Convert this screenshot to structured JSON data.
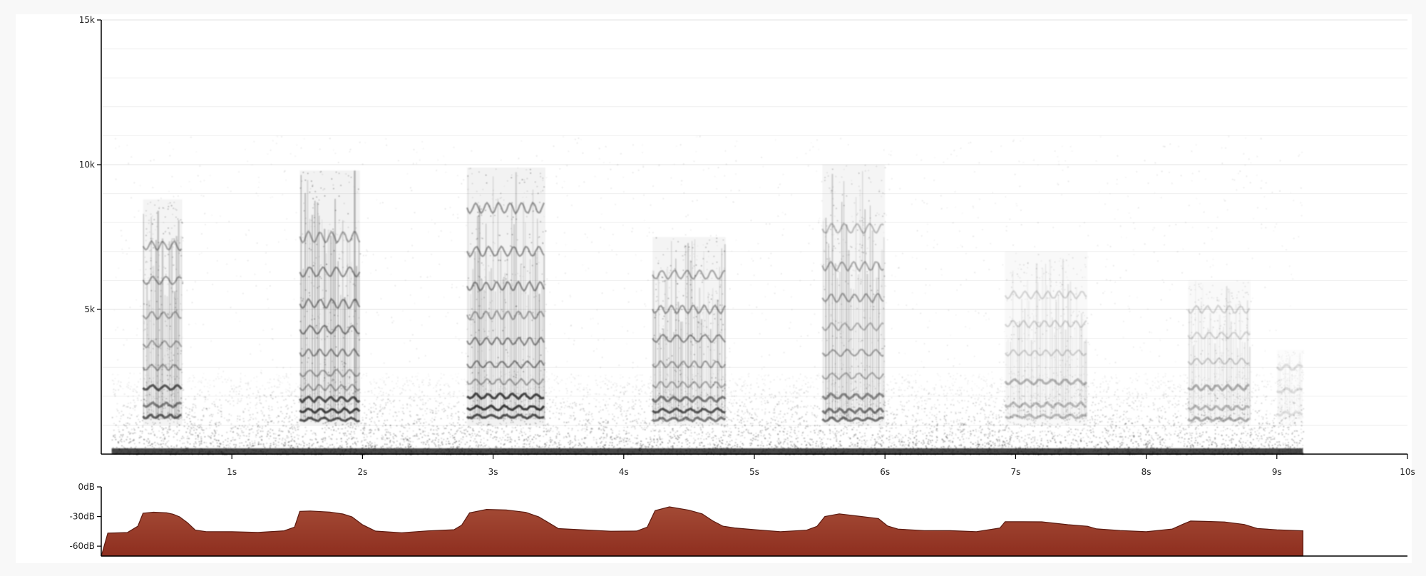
{
  "chart_data": [
    {
      "type": "heatmap",
      "subtype": "spectrogram",
      "colormap": "white-to-black",
      "x_axis": {
        "range": [
          0,
          10
        ],
        "unit": "s",
        "ticks": [
          1,
          2,
          3,
          4,
          5,
          6,
          7,
          8,
          9,
          10
        ],
        "tick_labels": [
          "1s",
          "2s",
          "3s",
          "4s",
          "5s",
          "6s",
          "7s",
          "8s",
          "9s",
          "10s"
        ]
      },
      "y_axis": {
        "range": [
          0,
          15000
        ],
        "unit": "Hz",
        "ticks": [
          5000,
          10000,
          15000
        ],
        "tick_labels": [
          "5k",
          "10k",
          "15k"
        ],
        "minor_step": 1000
      },
      "signal_end_s": 9.2,
      "noise_floor_hz": 2000,
      "strophes": [
        {
          "start_s": 0.32,
          "end_s": 0.62,
          "max_hz": 8800,
          "harmonic_hz": [
            1300,
            1700,
            2300,
            3000,
            3800,
            4800,
            6000,
            7200
          ],
          "intensity": 0.85
        },
        {
          "start_s": 1.52,
          "end_s": 1.98,
          "max_hz": 9800,
          "harmonic_hz": [
            1200,
            1500,
            1900,
            2300,
            2800,
            3500,
            4300,
            5200,
            6300,
            7500
          ],
          "intensity": 1.0
        },
        {
          "start_s": 2.8,
          "end_s": 3.4,
          "max_hz": 9900,
          "harmonic_hz": [
            1300,
            1600,
            2000,
            2500,
            3100,
            3900,
            4800,
            5800,
            7000,
            8500
          ],
          "intensity": 1.0
        },
        {
          "start_s": 4.22,
          "end_s": 4.78,
          "max_hz": 7500,
          "harmonic_hz": [
            1200,
            1500,
            1900,
            2400,
            3100,
            4000,
            5000,
            6200
          ],
          "intensity": 0.9
        },
        {
          "start_s": 5.52,
          "end_s": 6.0,
          "max_hz": 10000,
          "harmonic_hz": [
            1200,
            1500,
            2000,
            2700,
            3500,
            4400,
            5400,
            6500,
            7800
          ],
          "intensity": 0.75
        },
        {
          "start_s": 6.92,
          "end_s": 7.55,
          "max_hz": 7000,
          "harmonic_hz": [
            1300,
            1700,
            2500,
            3500,
            4500,
            5500
          ],
          "intensity": 0.45
        },
        {
          "start_s": 8.32,
          "end_s": 8.8,
          "max_hz": 6000,
          "harmonic_hz": [
            1200,
            1600,
            2300,
            3200,
            4100,
            5000
          ],
          "intensity": 0.45
        },
        {
          "start_s": 9.0,
          "end_s": 9.2,
          "max_hz": 3600,
          "harmonic_hz": [
            1400,
            2200,
            3000
          ],
          "intensity": 0.2
        }
      ]
    },
    {
      "type": "area",
      "subtype": "level-envelope",
      "color": "#8e2e1f",
      "x_axis": {
        "range": [
          0,
          10
        ],
        "unit": "s"
      },
      "y_axis": {
        "range": [
          -70,
          0
        ],
        "unit": "dB",
        "ticks": [
          0,
          -30,
          -60
        ],
        "tick_labels": [
          "0dB",
          "-30dB",
          "-60dB"
        ]
      },
      "x": [
        0.0,
        0.05,
        0.1,
        0.2,
        0.28,
        0.32,
        0.4,
        0.5,
        0.55,
        0.6,
        0.66,
        0.72,
        0.8,
        1.0,
        1.2,
        1.4,
        1.48,
        1.52,
        1.6,
        1.75,
        1.85,
        1.92,
        2.0,
        2.1,
        2.3,
        2.5,
        2.7,
        2.76,
        2.82,
        2.95,
        3.1,
        3.25,
        3.35,
        3.42,
        3.5,
        3.7,
        3.9,
        4.1,
        4.18,
        4.24,
        4.35,
        4.5,
        4.6,
        4.68,
        4.76,
        4.85,
        5.0,
        5.2,
        5.4,
        5.48,
        5.54,
        5.65,
        5.8,
        5.95,
        6.02,
        6.1,
        6.3,
        6.5,
        6.7,
        6.88,
        6.92,
        7.05,
        7.2,
        7.4,
        7.55,
        7.62,
        7.8,
        8.0,
        8.2,
        8.28,
        8.34,
        8.45,
        8.6,
        8.75,
        8.85,
        9.0,
        9.2
      ],
      "y": [
        -70,
        -47,
        -47,
        -46,
        -40,
        -27,
        -25,
        -26,
        -28,
        -30,
        -37,
        -43,
        -45,
        -46,
        -46,
        -45,
        -40,
        -25,
        -24,
        -25,
        -27,
        -31,
        -38,
        -44,
        -46,
        -45,
        -44,
        -38,
        -27,
        -23,
        -24,
        -26,
        -30,
        -36,
        -42,
        -44,
        -45,
        -44,
        -40,
        -24,
        -21,
        -23,
        -28,
        -35,
        -40,
        -42,
        -44,
        -45,
        -44,
        -40,
        -30,
        -28,
        -30,
        -32,
        -40,
        -43,
        -44,
        -45,
        -45,
        -42,
        -35,
        -35,
        -36,
        -38,
        -40,
        -42,
        -44,
        -45,
        -43,
        -38,
        -35,
        -35,
        -36,
        -38,
        -42,
        -44,
        -44
      ]
    }
  ]
}
